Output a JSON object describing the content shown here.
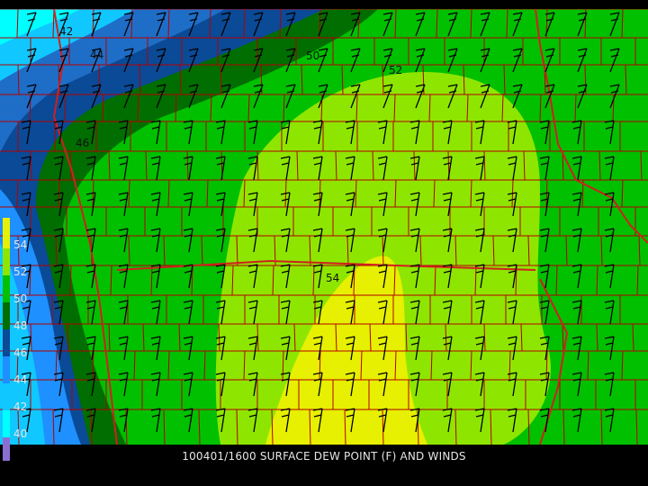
{
  "caption": "100401/1600 SURFACE DEW POINT (F) AND WINDS",
  "legend": {
    "ticks": [
      "54",
      "52",
      "50",
      "48",
      "46",
      "44",
      "42",
      "40"
    ]
  },
  "contour_labels": [
    "42",
    "44",
    "46",
    "50",
    "52",
    "54"
  ],
  "colors": {
    "c40": "#00ffff",
    "c42": "#10c8ff",
    "c44": "#1e90ff",
    "c46": "#1e6ec8",
    "c48": "#0a4a96",
    "c50": "#006e00",
    "c52": "#00a000",
    "c54": "#00d200",
    "c56": "#8ee600",
    "c58": "#bff000",
    "c60": "#e6f000",
    "county_lines": "#b40000",
    "state_lines": "#d02020",
    "wind_barbs": "#000000",
    "background": "#000000",
    "bar_bottom": "#8a6fd0"
  }
}
